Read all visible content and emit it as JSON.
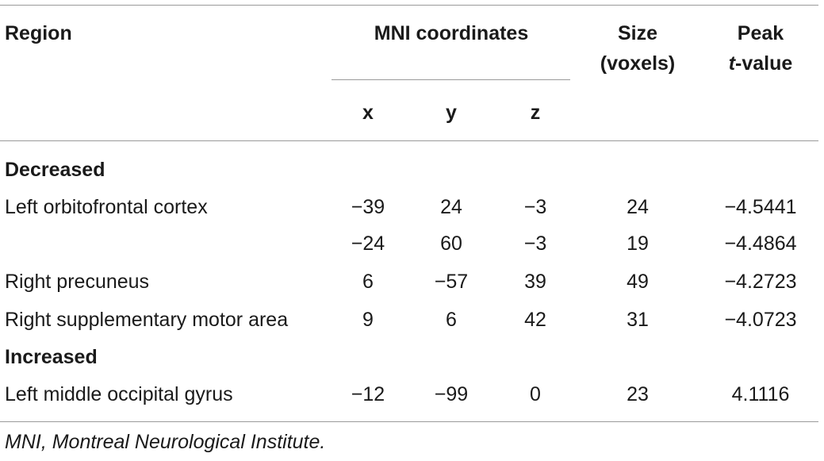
{
  "headers": {
    "region": "Region",
    "mni": "MNI coordinates",
    "size_line1": "Size",
    "size_line2": "(voxels)",
    "peak_line1": "Peak",
    "peak_t": "t",
    "peak_rest": "-value",
    "x": "x",
    "y": "y",
    "z": "z"
  },
  "sections": {
    "decreased": "Decreased",
    "increased": "Increased"
  },
  "rows": [
    {
      "region": "Left orbitofrontal cortex",
      "x": "−39",
      "y": "24",
      "z": "−3",
      "size": "24",
      "peak": "−4.5441"
    },
    {
      "region": "",
      "x": "−24",
      "y": "60",
      "z": "−3",
      "size": "19",
      "peak": "−4.4864"
    },
    {
      "region": "Right precuneus",
      "x": "6",
      "y": "−57",
      "z": "39",
      "size": "49",
      "peak": "−4.2723"
    },
    {
      "region": "Right supplementary motor area",
      "x": "9",
      "y": "6",
      "z": "42",
      "size": "31",
      "peak": "−4.0723"
    },
    {
      "region": "Left middle occipital gyrus",
      "x": "−12",
      "y": "−99",
      "z": "0",
      "size": "23",
      "peak": "4.1116"
    }
  ],
  "footnote": "MNI, Montreal Neurological Institute."
}
